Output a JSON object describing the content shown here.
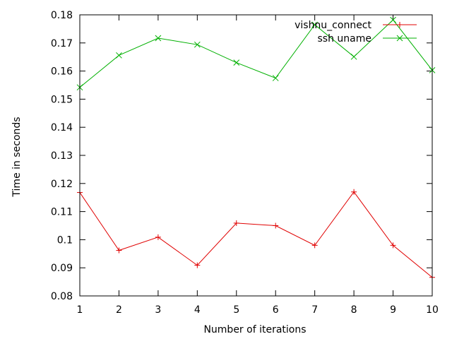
{
  "chart_data": {
    "type": "line",
    "xlabel": "Number of iterations",
    "ylabel": "Time in seconds",
    "xlim": [
      1,
      10
    ],
    "ylim": [
      0.08,
      0.18
    ],
    "x_ticks": [
      1,
      2,
      3,
      4,
      5,
      6,
      7,
      8,
      9,
      10
    ],
    "x_tick_labels": [
      "1",
      "2",
      "3",
      "4",
      "5",
      "6",
      "7",
      "8",
      "9",
      "10"
    ],
    "y_ticks": [
      0.08,
      0.09,
      0.1,
      0.11,
      0.12,
      0.13,
      0.14,
      0.15,
      0.16,
      0.17,
      0.18
    ],
    "y_tick_labels": [
      "0.08",
      "0.09",
      "0.1",
      "0.11",
      "0.12",
      "0.13",
      "0.14",
      "0.15",
      "0.16",
      "0.17",
      "0.18"
    ],
    "grid": false,
    "legend_position": "top-right",
    "x": [
      1,
      2,
      3,
      4,
      5,
      6,
      7,
      8,
      9,
      10
    ],
    "series": [
      {
        "name": "vishnu_connect",
        "color": "#e00000",
        "marker": "plus",
        "values": [
          0.1168,
          0.0962,
          0.1009,
          0.0909,
          0.1059,
          0.105,
          0.098,
          0.117,
          0.098,
          0.0866
        ]
      },
      {
        "name": "ssh uname",
        "color": "#00b000",
        "marker": "cross",
        "values": [
          0.1542,
          0.1656,
          0.1717,
          0.1694,
          0.163,
          0.1575,
          0.1765,
          0.1651,
          0.1782,
          0.1603
        ]
      }
    ]
  }
}
